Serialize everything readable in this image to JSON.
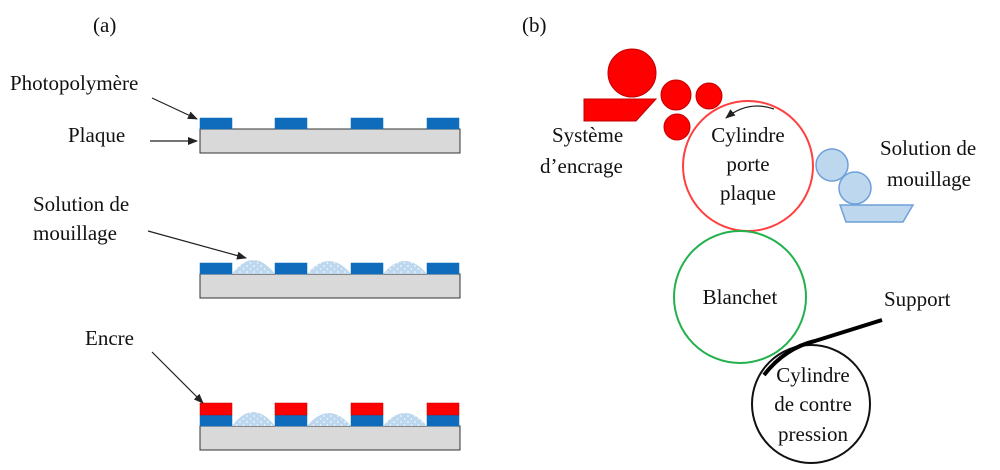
{
  "panel_a": {
    "label": "(a)",
    "photopolymer_label": "Photopolymère",
    "plate_label": "Plaque",
    "fountain_solution_label": [
      "Solution de",
      "mouillage"
    ],
    "ink_label": "Encre"
  },
  "panel_b": {
    "label": "(b)",
    "inking_system_label": [
      "Système",
      "d’encrage"
    ],
    "plate_cylinder_label": [
      "Cylindre",
      "porte",
      "plaque"
    ],
    "fountain_solution_label": [
      "Solution de",
      "mouillage"
    ],
    "blanket_label": "Blanchet",
    "substrate_label": "Support",
    "impression_cylinder_label": [
      "Cylindre",
      "de contre",
      "pression"
    ]
  },
  "colors": {
    "plate_fill": "#d9d9d9",
    "photopolymer": "#0f6cbd",
    "ink": "#ff0000",
    "ink_dark": "#c00000",
    "fountain_solution": "#bdd7ee",
    "fountain_solution_stroke": "#6fa0d8",
    "plate_cylinder_stroke": "#ff4040",
    "blanket_stroke": "#22b14c",
    "impression_cylinder_stroke": "#111111"
  }
}
